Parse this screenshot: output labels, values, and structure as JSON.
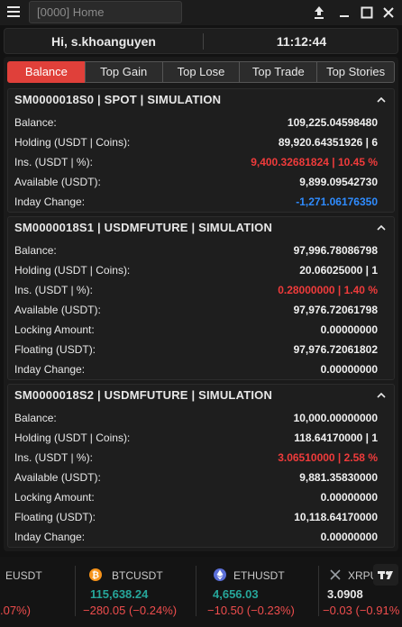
{
  "titlebar": {
    "search_value": "[0000] Home",
    "icons": [
      "menu-icon",
      "upload-icon",
      "minimize-icon",
      "maximize-icon",
      "close-icon"
    ]
  },
  "header": {
    "greeting": "Hi, s.khoanguyen",
    "time": "11:12:44"
  },
  "tabs": [
    {
      "label": "Balance",
      "active": true
    },
    {
      "label": "Top Gain",
      "active": false
    },
    {
      "label": "Top Lose",
      "active": false
    },
    {
      "label": "Top Trade",
      "active": false
    },
    {
      "label": "Top Stories",
      "active": false
    }
  ],
  "accounts": [
    {
      "title": "SM0000018S0 | SPOT | SIMULATION",
      "rows": [
        {
          "label": "Balance:",
          "value": "109,225.04598480",
          "tone": "normal"
        },
        {
          "label": "Holding (USDT | Coins):",
          "value": "89,920.64351926 | 6",
          "tone": "normal"
        },
        {
          "label": "Ins. (USDT | %):",
          "value": "9,400.32681824 | 10.45 %",
          "tone": "red"
        },
        {
          "label": "Available (USDT):",
          "value": "9,899.09542730",
          "tone": "normal"
        },
        {
          "label": "Inday Change:",
          "value": "-1,271.06176350",
          "tone": "blue"
        }
      ]
    },
    {
      "title": "SM0000018S1 | USDMFUTURE | SIMULATION",
      "rows": [
        {
          "label": "Balance:",
          "value": "97,996.78086798",
          "tone": "normal"
        },
        {
          "label": "Holding (USDT | Coins):",
          "value": "20.06025000 | 1",
          "tone": "normal"
        },
        {
          "label": "Ins. (USDT | %):",
          "value": "0.28000000 | 1.40 %",
          "tone": "red"
        },
        {
          "label": "Available (USDT):",
          "value": "97,976.72061798",
          "tone": "normal"
        },
        {
          "label": "Locking Amount:",
          "value": "0.00000000",
          "tone": "normal"
        },
        {
          "label": "Floating (USDT):",
          "value": "97,976.72061802",
          "tone": "normal"
        },
        {
          "label": "Inday Change:",
          "value": "0.00000000",
          "tone": "normal"
        }
      ]
    },
    {
      "title": "SM0000018S2 | USDMFUTURE | SIMULATION",
      "rows": [
        {
          "label": "Balance:",
          "value": "10,000.00000000",
          "tone": "normal"
        },
        {
          "label": "Holding (USDT | Coins):",
          "value": "118.64170000 | 1",
          "tone": "normal"
        },
        {
          "label": "Ins. (USDT | %):",
          "value": "3.06510000 | 2.58 %",
          "tone": "red"
        },
        {
          "label": "Available (USDT):",
          "value": "9,881.35830000",
          "tone": "normal"
        },
        {
          "label": "Locking Amount:",
          "value": "0.00000000",
          "tone": "normal"
        },
        {
          "label": "Floating (USDT):",
          "value": "10,118.64170000",
          "tone": "normal"
        },
        {
          "label": "Inday Change:",
          "value": "0.00000000",
          "tone": "normal"
        }
      ]
    }
  ],
  "ticker": [
    {
      "symbol": "EUSDT",
      "price": "",
      "change": ".07%)",
      "price_color": "#26a69a",
      "coin": "none"
    },
    {
      "symbol": "BTCUSDT",
      "price": "115,638.24",
      "change": "−280.05 (−0.24%)",
      "price_color": "#26a69a",
      "coin": "bitcoin-icon"
    },
    {
      "symbol": "ETHUSDT",
      "price": "4,656.03",
      "change": "−10.50 (−0.23%)",
      "price_color": "#26a69a",
      "coin": "ethereum-icon"
    },
    {
      "symbol": "XRPU",
      "price": "3.0908",
      "change": "−0.03 (−0.91%",
      "price_color": "#e8e8e8",
      "coin": "xrp-icon"
    }
  ],
  "colors": {
    "accent": "#e0403a",
    "negative": "#ef3b3b",
    "inday_negative": "#2f8cff",
    "positive": "#26a69a"
  }
}
